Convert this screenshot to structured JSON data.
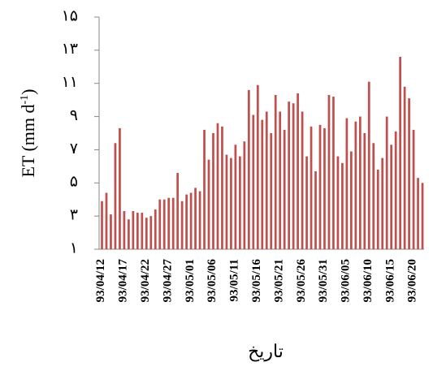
{
  "chart_data": {
    "type": "bar",
    "y_label_parts": [
      "ET (mm d",
      "-1",
      ")"
    ],
    "x_label": "تاریخ",
    "color": "#c0504d",
    "categories": [
      "93/04/12",
      null,
      null,
      null,
      null,
      "93/04/17",
      null,
      null,
      null,
      null,
      "93/04/22",
      null,
      null,
      null,
      null,
      "93/04/27",
      null,
      null,
      null,
      null,
      "93/05/01",
      null,
      null,
      null,
      null,
      "93/05/06",
      null,
      null,
      null,
      null,
      "93/05/11",
      null,
      null,
      null,
      null,
      "93/05/16",
      null,
      null,
      null,
      null,
      "93/05/21",
      null,
      null,
      null,
      null,
      "93/05/26",
      null,
      null,
      null,
      null,
      "93/05/31",
      null,
      null,
      null,
      null,
      "93/06/05",
      null,
      null,
      null,
      null,
      "93/06/10",
      null,
      null,
      null,
      null,
      "93/06/15",
      null,
      null,
      null,
      null,
      "93/06/20",
      null,
      null
    ],
    "values": [
      3.9,
      4.4,
      3.1,
      7.4,
      8.3,
      3.3,
      2.8,
      3.3,
      3.2,
      3.2,
      2.9,
      3.0,
      3.4,
      4.0,
      4.0,
      4.1,
      4.1,
      5.6,
      3.9,
      4.3,
      4.4,
      4.7,
      4.5,
      8.2,
      6.4,
      8.0,
      8.6,
      8.4,
      6.7,
      6.5,
      7.3,
      6.6,
      7.5,
      10.6,
      9.1,
      10.9,
      8.8,
      9.3,
      8.0,
      10.3,
      9.3,
      8.2,
      9.9,
      9.8,
      10.4,
      9.3,
      6.6,
      8.4,
      5.7,
      8.5,
      8.3,
      10.3,
      10.2,
      6.6,
      6.2,
      8.9,
      6.9,
      8.7,
      9.0,
      8.0,
      11.1,
      7.4,
      5.8,
      6.5,
      9.0,
      7.3,
      8.1,
      12.6,
      10.8,
      10.1,
      8.2,
      5.3,
      5.0
    ],
    "ylim": [
      1,
      15
    ],
    "yticks": [
      {
        "value": 1,
        "label": "۱"
      },
      {
        "value": 3,
        "label": "۳"
      },
      {
        "value": 5,
        "label": "۵"
      },
      {
        "value": 7,
        "label": "۷"
      },
      {
        "value": 9,
        "label": "۹"
      },
      {
        "value": 11,
        "label": "۱۱"
      },
      {
        "value": 13,
        "label": "۱۳"
      },
      {
        "value": 15,
        "label": "۱۵"
      }
    ],
    "grid": false
  }
}
